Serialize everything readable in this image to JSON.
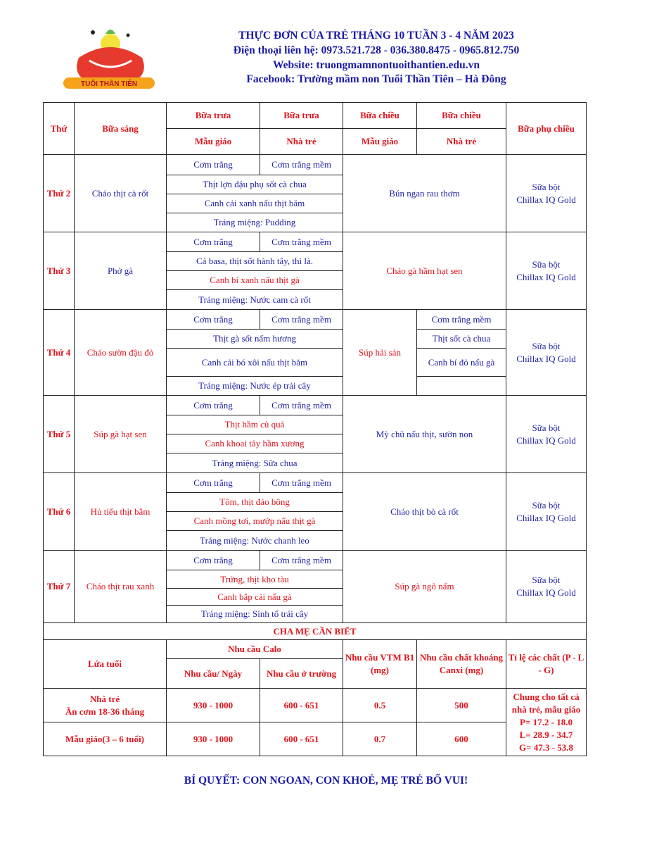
{
  "header": {
    "title": "THỰC ĐƠN CỦA TRẺ THÁNG 10 TUẦN 3 - 4 NĂM 2023",
    "phone": "Điện thoại liên hệ:  0973.521.728 - 036.380.8475  - 0965.812.750",
    "website": "Website: truongmamnontuoithantien.edu.vn",
    "facebook": "Facebook: Trường mầm non Tuổi Thần Tiên – Hà Đông",
    "logo_text": "Tuổi Thần Tiên"
  },
  "colors": {
    "red": "#e0141c",
    "blue": "#1f1fa6"
  },
  "menu_header": {
    "day": "Thứ",
    "breakfast": "Bữa sáng",
    "lunch": "Bữa trưa",
    "afternoon": "Bữa chiều",
    "kindergarten": "Mẫu giáo",
    "nursery": "Nhà trẻ",
    "snack": "Bữa phụ chiều"
  },
  "days": [
    {
      "label": "Thứ 2",
      "breakfast": "Cháo thịt cà rốt",
      "bc": "b",
      "rice_mg": "Cơm trắng",
      "rice_nt": "Cơm trắng mềm",
      "lunch": [
        {
          "t": "Thịt lợn đậu phụ sốt cà chua",
          "c": "b"
        },
        {
          "t": "Canh cải xanh nấu thịt băm",
          "c": "b"
        },
        {
          "t": "Tráng miệng: Pudding",
          "c": "b"
        }
      ],
      "afternoon": "Bún ngan rau thơm",
      "ac": "b",
      "snack": [
        "Sữa bột",
        "Chillax IQ Gold"
      ]
    },
    {
      "label": "Thứ 3",
      "breakfast": "Phở gà",
      "bc": "b",
      "rice_mg": "Cơm trắng",
      "rice_nt": "Cơm trắng mềm",
      "lunch": [
        {
          "t": "Cá basa, thịt sốt hành tây, thì là.",
          "c": "b"
        },
        {
          "t": "Canh bí xanh nấu thịt gà",
          "c": "r"
        },
        {
          "t": "Tráng miệng: Nước cam cà rốt",
          "c": "b"
        }
      ],
      "afternoon": "Cháo gà hầm hạt sen",
      "ac": "r",
      "snack": [
        "Sữa bột",
        "Chillax IQ Gold"
      ]
    },
    {
      "label": "Thứ 4",
      "breakfast": "Cháo sườn đậu đỏ",
      "bc": "r",
      "rice_mg": "Cơm trắng",
      "rice_nt": "Cơm trắng mềm",
      "lunch": [
        {
          "t": "Thịt gà sốt nấm hương",
          "c": "b"
        },
        {
          "t": "Canh cải bó xôi nấu thịt băm",
          "c": "b"
        },
        {
          "t": "Tráng miệng: Nước ép trái cây",
          "c": "b"
        }
      ],
      "afternoon": "Súp hải sản",
      "ac": "r",
      "afternoon_nt": [
        "Cơm trắng mềm",
        "Thịt sốt cà chua",
        "Canh bí đỏ nấu gà",
        ""
      ],
      "snack": [
        "Sữa bột",
        "Chillax IQ Gold"
      ]
    },
    {
      "label": "Thứ 5",
      "breakfast": "Súp gà hạt sen",
      "bc": "r",
      "rice_mg": "Cơm trắng",
      "rice_nt": "Cơm trắng mềm",
      "lunch": [
        {
          "t": "Thịt hầm củ quả",
          "c": "r"
        },
        {
          "t": "Canh khoai tây hầm xương",
          "c": "r"
        },
        {
          "t": "Tráng miệng: Sữa chua",
          "c": "b"
        }
      ],
      "afternoon": "Mỳ chũ nấu thịt, sườn non",
      "ac": "b",
      "snack": [
        "Sữa bột",
        "Chillax IQ Gold"
      ]
    },
    {
      "label": "Thứ 6",
      "breakfast": "Hủ tiếu thịt bằm",
      "bc": "r",
      "rice_mg": "Cơm trắng",
      "rice_nt": "Cơm trắng mềm",
      "lunch": [
        {
          "t": "Tôm, thịt đảo bông",
          "c": "r"
        },
        {
          "t": "Canh mồng tơi, mướp nấu thịt gà",
          "c": "r"
        },
        {
          "t": "Tráng miệng: Nước chanh leo",
          "c": "b"
        }
      ],
      "afternoon": "Cháo thịt bò cà rốt",
      "ac": "b",
      "snack": [
        "Sữa bột",
        "Chillax IQ Gold"
      ]
    },
    {
      "label": "Thứ 7",
      "breakfast": "Cháo thịt rau xanh",
      "bc": "r",
      "rice_mg": "Cơm trắng",
      "rice_nt": "Cơm trắng mềm",
      "lunch": [
        {
          "t": "Trứng, thịt kho tàu",
          "c": "r"
        },
        {
          "t": "Canh bắp cải nấu gà",
          "c": "r"
        },
        {
          "t": "Tráng miệng: Sinh tố trái cây",
          "c": "b"
        }
      ],
      "afternoon": "Súp gà ngô nấm",
      "ac": "r",
      "snack": [
        "Sữa bột",
        "Chillax IQ Gold"
      ]
    }
  ],
  "parents": {
    "title": "CHA MẸ CẦN BIẾT",
    "age": "Lứa tuổi",
    "calo": "Nhu cầu Calo",
    "per_day": "Nhu cầu/ Ngày",
    "at_school": "Nhu cầu ở trường",
    "vtm": "Nhu cầu VTM B1 (mg)",
    "canxi": "Nhu cầu chất khoáng Canxi (mg)",
    "ratio": "Tỉ lệ các chất (P - L - G)",
    "rows": [
      {
        "age": [
          "Nhà trẻ",
          "Ăn cơm 18-36 tháng"
        ],
        "per_day": "930 - 1000",
        "at_school": "600 - 651",
        "vtm": "0.5",
        "canxi": "500"
      },
      {
        "age": [
          "Mẫu giáo(3 – 6 tuổi)"
        ],
        "per_day": "930 - 1000",
        "at_school": "600 - 651",
        "vtm": "0.7",
        "canxi": "600"
      }
    ],
    "ratio_values": [
      "Chung cho tất cả nhà trẻ, mẫu giáo",
      "P= 17.2 - 18.0",
      "L= 28.9 - 34.7",
      "G= 47.3 - 53.8"
    ]
  },
  "footer": "BÍ QUYẾT: CON NGOAN, CON KHOẺ, MẸ TRẺ BỐ VUI!"
}
